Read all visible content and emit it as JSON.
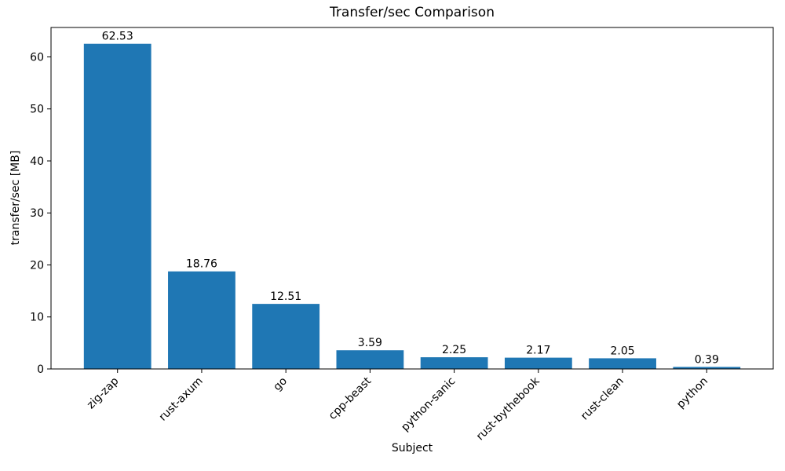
{
  "chart_data": {
    "type": "bar",
    "title": "Transfer/sec Comparison",
    "xlabel": "Subject",
    "ylabel": "transfer/sec [MB]",
    "categories": [
      "zig-zap",
      "rust-axum",
      "go",
      "cpp-beast",
      "python-sanic",
      "rust-bythebook",
      "rust-clean",
      "python"
    ],
    "values": [
      62.53,
      18.76,
      12.51,
      3.59,
      2.25,
      2.17,
      2.05,
      0.39
    ],
    "value_labels": [
      "62.53",
      "18.76",
      "12.51",
      "3.59",
      "2.25",
      "2.17",
      "2.05",
      "0.39"
    ],
    "yticks": [
      0,
      10,
      20,
      30,
      40,
      50,
      60
    ],
    "ylim": [
      0,
      65.66
    ],
    "bar_color": "#1f77b4",
    "axis_color": "#000000",
    "text_color": "#000000",
    "background_color": "#ffffff",
    "grid": false,
    "legend_position": "none",
    "x_tick_rotation_deg": 45
  }
}
